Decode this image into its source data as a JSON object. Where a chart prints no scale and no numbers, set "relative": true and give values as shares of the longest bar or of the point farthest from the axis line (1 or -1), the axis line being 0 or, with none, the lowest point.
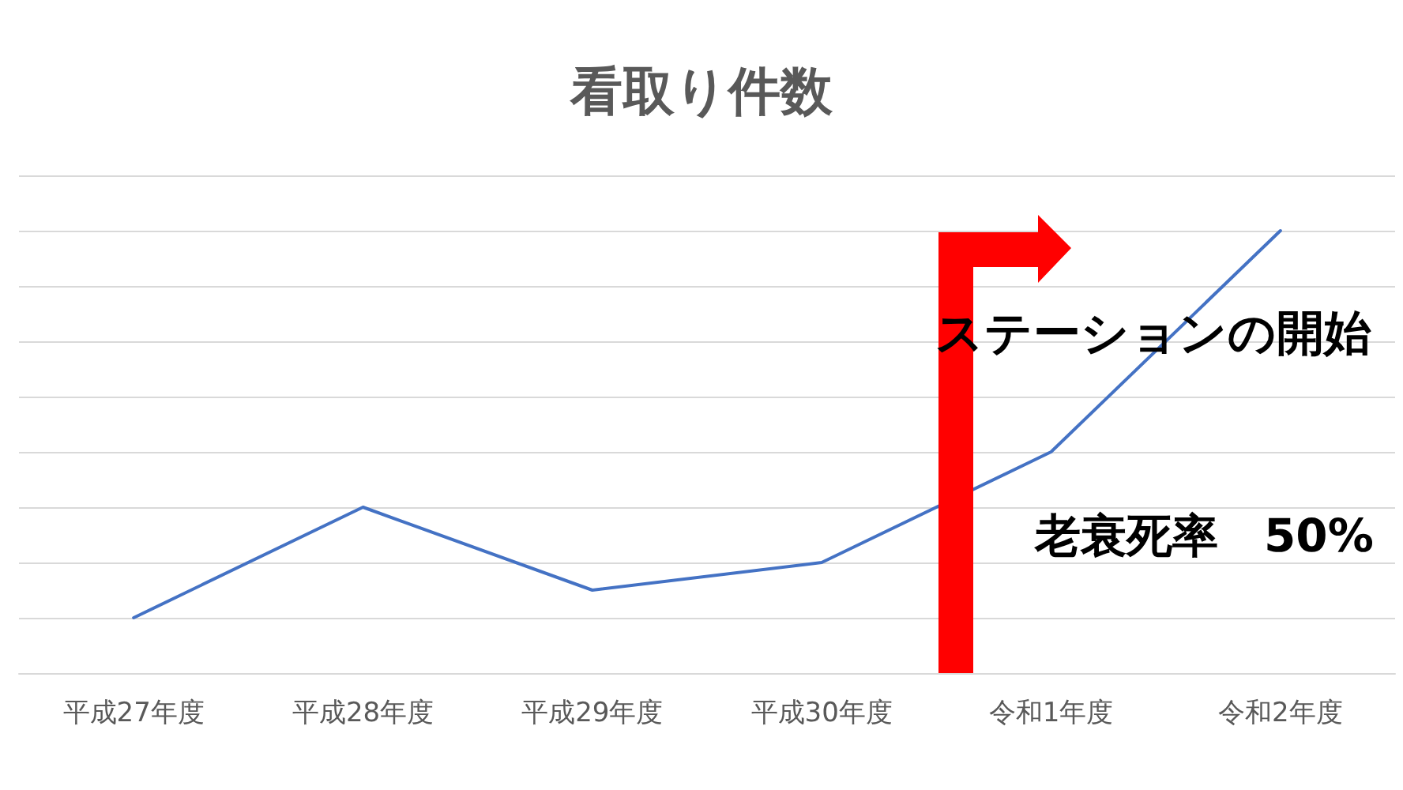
{
  "chart_data": {
    "type": "line",
    "title": "看取り件数",
    "categories": [
      "平成27年度",
      "平成28年度",
      "平成29年度",
      "平成30年度",
      "令和1年度",
      "令和2年度"
    ],
    "values": [
      0.125,
      0.375,
      0.1875,
      0.25,
      0.5,
      1
    ],
    "color": "#4472c4",
    "relative": true,
    "grid": "y",
    "annotations": [
      "ステーションの開始",
      "老衰死率　50%"
    ]
  }
}
